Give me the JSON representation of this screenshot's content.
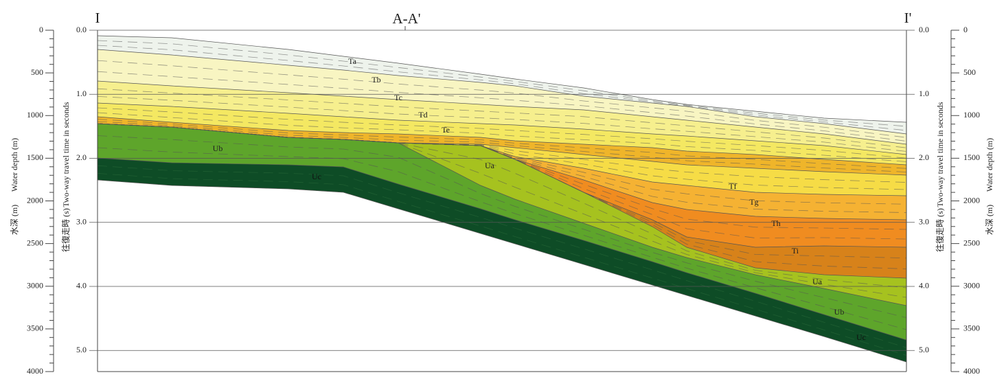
{
  "section_labels": {
    "left": "I",
    "center": "A-A'",
    "right": "I'"
  },
  "depth_axis": {
    "label_ja": "水深 (m)",
    "label_en": "Water depth (m)",
    "range": [
      0,
      4000
    ],
    "ticks": [
      0,
      500,
      1000,
      1500,
      2000,
      2500,
      3000,
      3500,
      4000
    ]
  },
  "time_axis": {
    "label_ja": "往復走時 (s)",
    "label_en": "Two-way travel time in seconds",
    "range": [
      0,
      5.33
    ],
    "ticks": [
      {
        "value": 0,
        "label": "0.0"
      },
      {
        "value": 1,
        "label": "1.0"
      },
      {
        "value": 2,
        "label": "2.0"
      },
      {
        "value": 3,
        "label": "3.0"
      },
      {
        "value": 4,
        "label": "4.0"
      },
      {
        "value": 5,
        "label": "5.0"
      }
    ]
  },
  "unit_labels": [
    "Ta",
    "Tb",
    "Tc",
    "Td",
    "Te",
    "Ub",
    "Uc",
    "Ua",
    "Tf",
    "Tg",
    "Th",
    "Ti",
    "Ua",
    "Ub",
    "Uc"
  ]
}
